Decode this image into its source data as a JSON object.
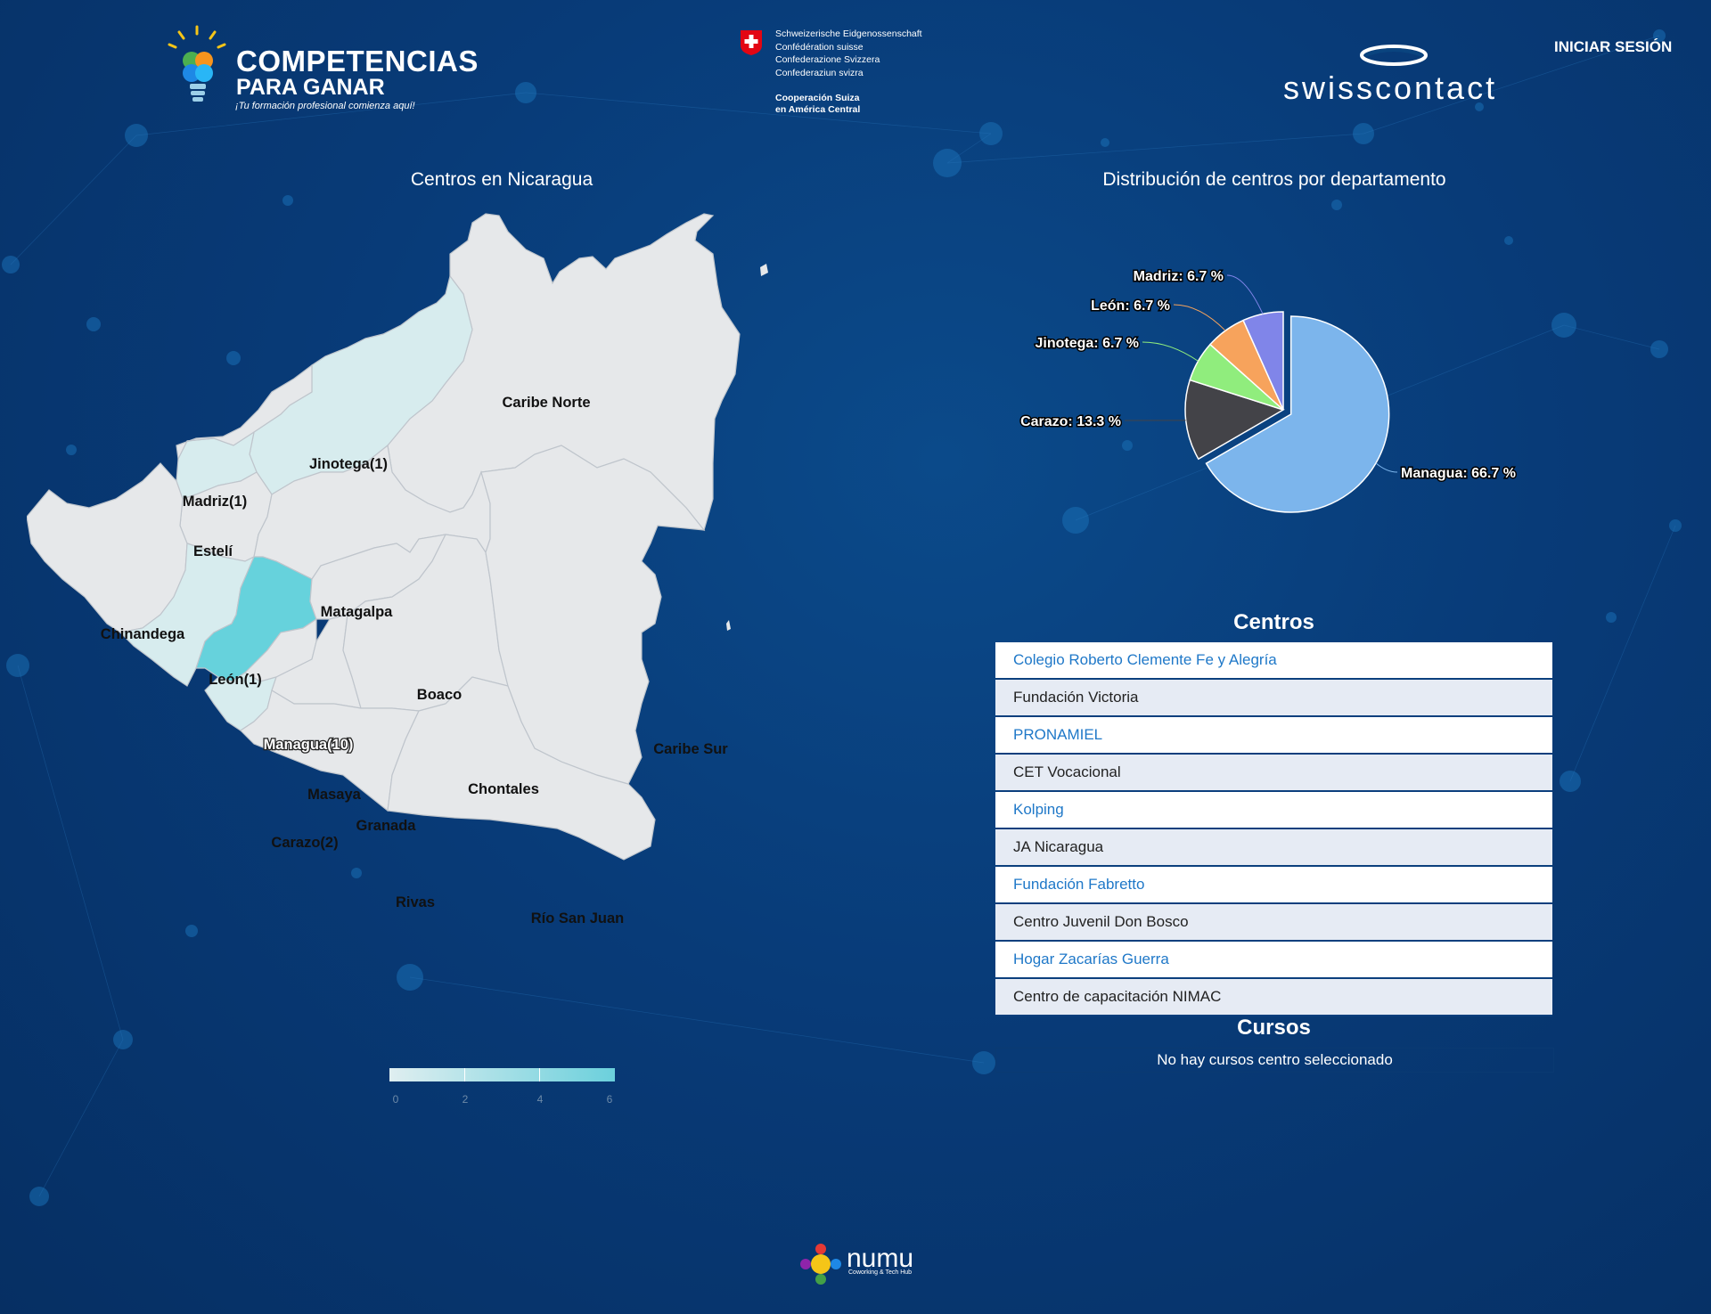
{
  "header": {
    "logo_line1": "COMPETENCIAS",
    "logo_line2": "PARA GANAR",
    "logo_tagline": "¡Tu formación profesional comienza aquí!",
    "swiss_names": [
      "Schweizerische Eidgenossenschaft",
      "Confédération suisse",
      "Confederazione Svizzera",
      "Confederaziun svizra"
    ],
    "swiss_coop": [
      "Cooperación Suiza",
      "en América Central"
    ],
    "swisscontact": "swisscontact",
    "login_label": "INICIAR SESIÓN"
  },
  "map": {
    "title": "Centros en Nicaragua",
    "color_scale": [
      "#e6e8ea",
      "#d7ecee",
      "#cfe8ea",
      "#66d2dc"
    ],
    "legend_ticks": [
      "0",
      "2",
      "4",
      "6"
    ],
    "labels": {
      "caribe_norte": "Caribe Norte",
      "jinotega": "Jinotega(1)",
      "madriz": "Madriz(1)",
      "esteli": "Estelí",
      "chinandega": "Chinandega",
      "matagalpa": "Matagalpa",
      "leon": "León(1)",
      "boaco": "Boaco",
      "managua": "Managua(10)",
      "masaya": "Masaya",
      "chontales": "Chontales",
      "caribe_sur": "Caribe Sur",
      "granada": "Granada",
      "carazo": "Carazo(2)",
      "rivas": "Rivas",
      "rio_san_juan": "Río San Juan"
    }
  },
  "chart_data": {
    "type": "pie",
    "title": "Distribución de centros por departamento",
    "slices": [
      {
        "name": "Managua",
        "value": 66.7,
        "color": "#7cb5ec",
        "label": "Managua: 66.7 %"
      },
      {
        "name": "Carazo",
        "value": 13.3,
        "color": "#434348",
        "label": "Carazo: 13.3 %"
      },
      {
        "name": "Jinotega",
        "value": 6.7,
        "color": "#90ed7d",
        "label": "Jinotega: 6.7 %"
      },
      {
        "name": "León",
        "value": 6.7,
        "color": "#f7a35c",
        "label": "León: 6.7 %"
      },
      {
        "name": "Madriz",
        "value": 6.7,
        "color": "#8085e9",
        "label": "Madriz: 6.7 %"
      }
    ],
    "sliced": "Managua"
  },
  "centros": {
    "title": "Centros",
    "items": [
      "Colegio Roberto Clemente Fe y Alegría",
      "Fundación Victoria",
      "PRONAMIEL",
      "CET Vocacional",
      "Kolping",
      "JA Nicaragua",
      "Fundación Fabretto",
      "Centro Juvenil Don Bosco",
      "Hogar Zacarías Guerra",
      "Centro de capacitación NIMAC"
    ]
  },
  "cursos": {
    "title": "Cursos",
    "empty_message": "No hay cursos centro seleccionado"
  },
  "footer": {
    "brand": "numu",
    "brand_sub": "Coworking & Tech Hub"
  }
}
